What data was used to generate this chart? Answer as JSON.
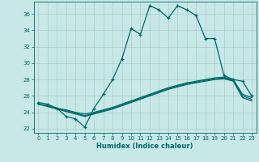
{
  "xlabel": "Humidex (Indice chaleur)",
  "xlim": [
    -0.5,
    23.5
  ],
  "ylim": [
    21.5,
    37.5
  ],
  "yticks": [
    22,
    24,
    26,
    28,
    30,
    32,
    34,
    36
  ],
  "xticks": [
    0,
    1,
    2,
    3,
    4,
    5,
    6,
    7,
    8,
    9,
    10,
    11,
    12,
    13,
    14,
    15,
    16,
    17,
    18,
    19,
    20,
    21,
    22,
    23
  ],
  "bg_color": "#c8e8e8",
  "grid_color": "#aacccc",
  "line_color": "#006868",
  "line1_x": [
    0,
    1,
    2,
    3,
    4,
    5,
    6,
    7,
    8,
    9,
    10,
    11,
    12,
    13,
    14,
    15,
    16,
    17,
    18,
    19,
    20,
    21,
    22,
    23
  ],
  "line1_y": [
    25.2,
    25.0,
    24.5,
    23.5,
    23.2,
    22.2,
    24.5,
    26.2,
    28.0,
    30.5,
    34.2,
    33.5,
    37.0,
    36.5,
    35.5,
    37.0,
    36.5,
    35.8,
    33.0,
    33.0,
    28.5,
    28.0,
    27.8,
    26.0
  ],
  "line2_x": [
    0,
    1,
    2,
    3,
    4,
    5,
    6,
    7,
    8,
    9,
    10,
    11,
    12,
    13,
    14,
    15,
    16,
    17,
    18,
    19,
    20,
    21,
    22,
    23
  ],
  "line2_y": [
    25.0,
    24.8,
    24.5,
    24.3,
    24.0,
    23.8,
    24.0,
    24.3,
    24.6,
    25.0,
    25.4,
    25.8,
    26.2,
    26.6,
    27.0,
    27.3,
    27.6,
    27.8,
    28.0,
    28.2,
    28.3,
    28.0,
    26.2,
    25.8
  ],
  "line3_x": [
    0,
    1,
    2,
    3,
    4,
    5,
    6,
    7,
    8,
    9,
    10,
    11,
    12,
    13,
    14,
    15,
    16,
    17,
    18,
    19,
    20,
    21,
    22,
    23
  ],
  "line3_y": [
    25.0,
    24.8,
    24.5,
    24.2,
    23.9,
    23.6,
    23.9,
    24.2,
    24.5,
    24.9,
    25.3,
    25.7,
    26.1,
    26.5,
    26.9,
    27.2,
    27.5,
    27.7,
    27.9,
    28.1,
    28.2,
    27.9,
    26.0,
    25.6
  ],
  "line4_x": [
    0,
    1,
    2,
    3,
    4,
    5,
    6,
    7,
    8,
    9,
    10,
    11,
    12,
    13,
    14,
    15,
    16,
    17,
    18,
    19,
    20,
    21,
    22,
    23
  ],
  "line4_y": [
    25.0,
    24.7,
    24.4,
    24.1,
    23.8,
    23.5,
    23.8,
    24.1,
    24.4,
    24.8,
    25.2,
    25.6,
    26.0,
    26.4,
    26.8,
    27.1,
    27.4,
    27.6,
    27.8,
    28.0,
    28.1,
    27.8,
    25.8,
    25.4
  ]
}
